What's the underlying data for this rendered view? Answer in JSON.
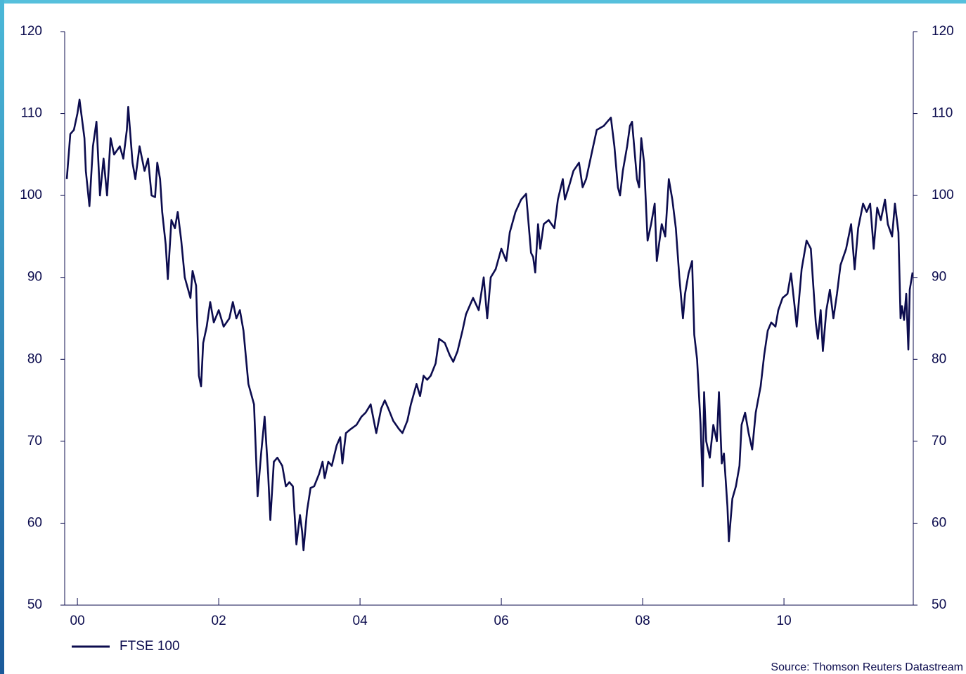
{
  "chart_data": {
    "type": "line",
    "x": [
      1999.85,
      1999.9,
      1999.95,
      2000.0,
      2000.03,
      2000.1,
      2000.12,
      2000.17,
      2000.22,
      2000.27,
      2000.32,
      2000.37,
      2000.42,
      2000.47,
      2000.52,
      2000.6,
      2000.65,
      2000.7,
      2000.72,
      2000.78,
      2000.82,
      2000.88,
      2000.95,
      2001.0,
      2001.05,
      2001.1,
      2001.13,
      2001.17,
      2001.2,
      2001.25,
      2001.28,
      2001.33,
      2001.38,
      2001.42,
      2001.47,
      2001.52,
      2001.6,
      2001.63,
      2001.68,
      2001.72,
      2001.75,
      2001.78,
      2001.83,
      2001.88,
      2001.93,
      2002.0,
      2002.07,
      2002.15,
      2002.2,
      2002.25,
      2002.3,
      2002.35,
      2002.42,
      2002.5,
      2002.55,
      2002.6,
      2002.65,
      2002.7,
      2002.73,
      2002.78,
      2002.83,
      2002.9,
      2002.95,
      2003.0,
      2003.05,
      2003.1,
      2003.15,
      2003.18,
      2003.2,
      2003.25,
      2003.3,
      2003.35,
      2003.42,
      2003.47,
      2003.5,
      2003.55,
      2003.6,
      2003.67,
      2003.72,
      2003.75,
      2003.8,
      2003.87,
      2003.95,
      2004.02,
      2004.08,
      2004.15,
      2004.23,
      2004.3,
      2004.35,
      2004.4,
      2004.47,
      2004.55,
      2004.6,
      2004.67,
      2004.72,
      2004.8,
      2004.85,
      2004.9,
      2004.95,
      2005.0,
      2005.07,
      2005.12,
      2005.2,
      2005.27,
      2005.32,
      2005.38,
      2005.45,
      2005.5,
      2005.6,
      2005.68,
      2005.75,
      2005.8,
      2005.85,
      2005.92,
      2006.0,
      2006.07,
      2006.12,
      2006.2,
      2006.28,
      2006.35,
      2006.42,
      2006.45,
      2006.48,
      2006.52,
      2006.55,
      2006.6,
      2006.67,
      2006.75,
      2006.8,
      2006.87,
      2006.9,
      2006.97,
      2007.02,
      2007.1,
      2007.15,
      2007.2,
      2007.25,
      2007.3,
      2007.35,
      2007.45,
      2007.5,
      2007.55,
      2007.6,
      2007.65,
      2007.68,
      2007.72,
      2007.78,
      2007.82,
      2007.85,
      2007.92,
      2007.95,
      2007.98,
      2008.02,
      2008.07,
      2008.12,
      2008.17,
      2008.2,
      2008.27,
      2008.32,
      2008.37,
      2008.42,
      2008.47,
      2008.52,
      2008.57,
      2008.6,
      2008.65,
      2008.7,
      2008.73,
      2008.77,
      2008.82,
      2008.85,
      2008.87,
      2008.9,
      2008.95,
      2009.0,
      2009.05,
      2009.08,
      2009.12,
      2009.15,
      2009.2,
      2009.22,
      2009.27,
      2009.32,
      2009.37,
      2009.4,
      2009.45,
      2009.5,
      2009.55,
      2009.6,
      2009.67,
      2009.72,
      2009.77,
      2009.82,
      2009.88,
      2009.92,
      2009.98,
      2010.05,
      2010.1,
      2010.15,
      2010.18,
      2010.25,
      2010.32,
      2010.38,
      2010.45,
      2010.48,
      2010.52,
      2010.55,
      2010.6,
      2010.65,
      2010.7,
      2010.75,
      2010.8,
      2010.88,
      2010.95,
      2011.0,
      2011.05,
      2011.12,
      2011.17,
      2011.22,
      2011.27,
      2011.32,
      2011.37,
      2011.43,
      2011.47,
      2011.53,
      2011.57,
      2011.62,
      2011.65,
      2011.67,
      2011.7,
      2011.73,
      2011.76,
      2011.78,
      2011.82
    ],
    "series": [
      {
        "name": "FTSE 100",
        "color": "#0c0c4e",
        "values": [
          102,
          107.5,
          108,
          110,
          111.7,
          107,
          103,
          98.7,
          106,
          109,
          100,
          104.5,
          100,
          107,
          105,
          106,
          104.5,
          108,
          110.8,
          104,
          102,
          106,
          103,
          104.5,
          100,
          99.8,
          104,
          102,
          98,
          94,
          89.8,
          97,
          96,
          98,
          94.5,
          90,
          87.5,
          90.8,
          89,
          78,
          76.7,
          82,
          84,
          87,
          84.5,
          86,
          84,
          85,
          87,
          85,
          86,
          83.5,
          77,
          74.5,
          63.3,
          68.5,
          73,
          66,
          60.4,
          67.5,
          68,
          67,
          64.5,
          65,
          64.5,
          57.4,
          61,
          59,
          56.7,
          61.5,
          64.3,
          64.5,
          66,
          67.5,
          65.5,
          67.5,
          67,
          69.5,
          70.5,
          67.3,
          71,
          71.5,
          72,
          73,
          73.5,
          74.5,
          71,
          74,
          75,
          74,
          72.5,
          71.5,
          71,
          72.5,
          74.5,
          77,
          75.5,
          78,
          77.5,
          78,
          79.5,
          82.5,
          82,
          80.5,
          79.7,
          81,
          83.5,
          85.5,
          87.5,
          86,
          90,
          85,
          90,
          91,
          93.5,
          92,
          95.5,
          98,
          99.5,
          100.2,
          93,
          92.5,
          90.6,
          96.5,
          93.5,
          96.5,
          97,
          96,
          99.5,
          102,
          99.5,
          101.5,
          103,
          104,
          101,
          102,
          104,
          106,
          108,
          108.5,
          109,
          109.5,
          106,
          101,
          100,
          103,
          106,
          108.5,
          109,
          102,
          101,
          107,
          104,
          94.5,
          96.5,
          99,
          92,
          96.5,
          95,
          102,
          99.5,
          96,
          90,
          85,
          88,
          90.5,
          92,
          83,
          80,
          72,
          64.5,
          76,
          70,
          68,
          72,
          70,
          76,
          67.3,
          68.5,
          62,
          57.8,
          63,
          64.5,
          67,
          72,
          73.5,
          71,
          69,
          73.5,
          76.7,
          80.5,
          83.5,
          84.5,
          84,
          86,
          87.5,
          88,
          90.5,
          86.5,
          84,
          91,
          94.5,
          93.5,
          84.5,
          82.5,
          86,
          81,
          86,
          88.5,
          85,
          88,
          91.5,
          93.5,
          96.5,
          91,
          96,
          99,
          98,
          99,
          93.5,
          98.5,
          97,
          99.5,
          96.5,
          95,
          99,
          95.5,
          85,
          86.5,
          84.8,
          88,
          81.2,
          88.5,
          90.6
        ]
      }
    ],
    "xlim": [
      1999.82,
      2011.83
    ],
    "xticks": [
      {
        "value": 2000,
        "label": "00"
      },
      {
        "value": 2002,
        "label": "02"
      },
      {
        "value": 2004,
        "label": "04"
      },
      {
        "value": 2006,
        "label": "06"
      },
      {
        "value": 2008,
        "label": "08"
      },
      {
        "value": 2010,
        "label": "10"
      }
    ],
    "ylim": [
      50,
      120
    ],
    "yticks": [
      50,
      60,
      70,
      80,
      90,
      100,
      110,
      120
    ],
    "y2lim": [
      50,
      120
    ],
    "y2ticks": [
      50,
      60,
      70,
      80,
      90,
      100,
      110,
      120
    ],
    "source": "Source: Thomson Reuters Datastream"
  }
}
